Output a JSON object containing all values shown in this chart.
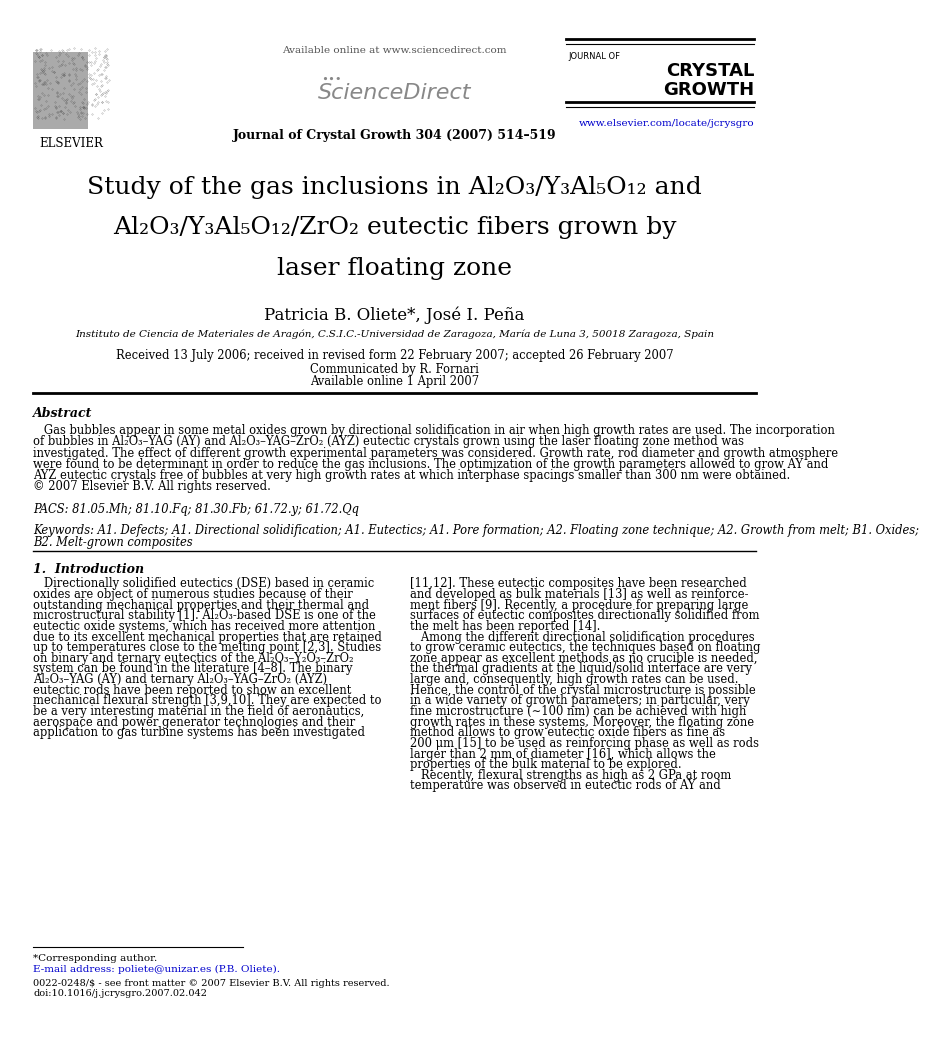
{
  "page_width": 9.92,
  "page_height": 13.23,
  "background_color": "#ffffff",
  "header": {
    "available_online": "Available online at www.sciencedirect.com",
    "journal_name_small": "JOURNAL OF",
    "journal_name_big1": "CRYSTAL",
    "journal_name_big2": "GROWTH",
    "journal_ref": "Journal of Crystal Growth 304 (2007) 514–519",
    "journal_url": "www.elsevier.com/locate/jcrysgro",
    "elsevier_text": "ELSEVIER"
  },
  "title_l1": "Study of the gas inclusions in Al₂O₃/Y₃Al₅O₁₂ and",
  "title_l2": "Al₂O₃/Y₃Al₅O₁₂/ZrO₂ eutectic fibers grown by",
  "title_l3": "laser floating zone",
  "authors": "Patricia B. Oliete*, José I. Peña",
  "affiliation": "Instituto de Ciencia de Materiales de Aragón, C.S.I.C.-Universidad de Zaragoza, María de Luna 3, 50018 Zaragoza, Spain",
  "received": "Received 13 July 2006; received in revised form 22 February 2007; accepted 26 February 2007",
  "communicated": "Communicated by R. Fornari",
  "available": "Available online 1 April 2007",
  "abstract_title": "Abstract",
  "pacs": "PACS: 81.05.Mh; 81.10.Fq; 81.30.Fb; 61.72.y; 61.72.Qq",
  "keywords_l1": "Keywords: A1. Defects; A1. Directional solidification; A1. Eutectics; A1. Pore formation; A2. Floating zone technique; A2. Growth from melt; B1. Oxides;",
  "keywords_l2": "B2. Melt-grown composites",
  "section1_title": "1.  Introduction",
  "footnote_star": "*Corresponding author.",
  "footnote_email": "E-mail address: poliete@unizar.es (P.B. Oliete).",
  "footnote_issn": "0022-0248/$ - see front matter © 2007 Elsevier B.V. All rights reserved.",
  "footnote_doi": "doi:10.1016/j.jcrysgro.2007.02.042"
}
